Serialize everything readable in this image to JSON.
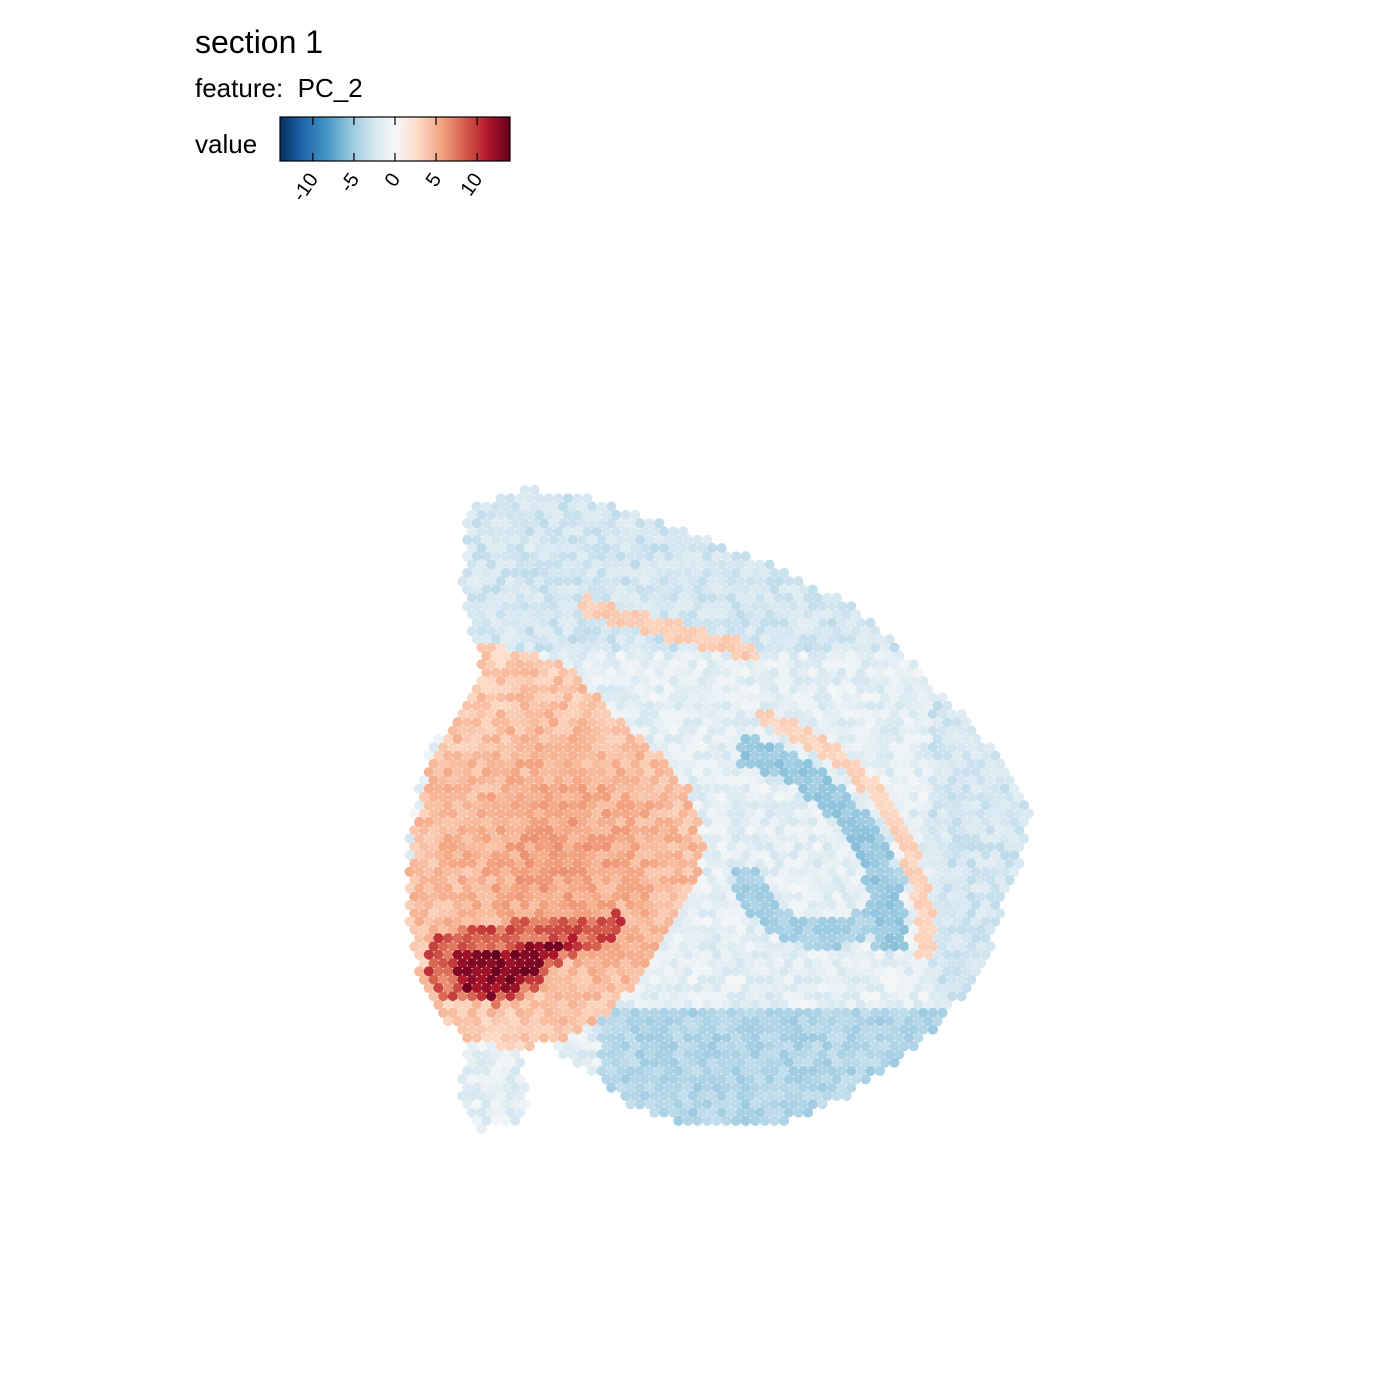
{
  "chart_data": {
    "type": "scatter",
    "title": "section 1",
    "subtitle_prefix": "feature:",
    "feature": "PC_2",
    "legend": {
      "title": "value",
      "placement": "top-left",
      "colorscale": [
        "#053061",
        "#2166ac",
        "#4393c3",
        "#92c5de",
        "#d1e5f0",
        "#f7f7f7",
        "#fddbc7",
        "#f4a582",
        "#d6604d",
        "#b2182b",
        "#67001f"
      ],
      "range": [
        -14,
        14
      ],
      "ticks": [
        -10,
        -5,
        0,
        5,
        10
      ],
      "tick_labels": [
        "-10",
        "-5",
        "0",
        "5",
        "10"
      ]
    },
    "grid": false,
    "axes_visible": false,
    "spot_layout": "hexagonal capture-spot grid of one tissue section",
    "points_note": "about 2000 spots; the value of each spot is set by region (cortex -2 to -4, pale fiber tracts +2, striatum +3 to +6, ventral band +10 to +14, hippocampus -4 to -5)"
  }
}
